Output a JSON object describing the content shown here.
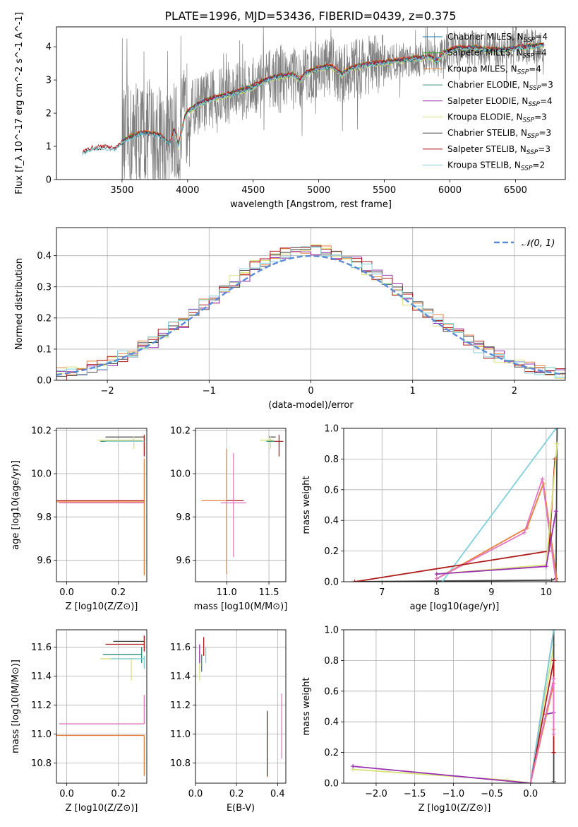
{
  "figure_title": "PLATE=1996, MJD=53436, FIBERID=0439, z=0.375",
  "colors": {
    "chabrier_miles": "#1f77b4",
    "salpeter_miles": "#2ca02c",
    "kroupa_miles": "#e6803a",
    "chabrier_elodie": "#2f8f77",
    "salpeter_elodie": "#9a32b0",
    "kroupa_elodie": "#d8e27a",
    "chabrier_stelib": "#444444",
    "salpeter_stelib": "#b01c1c",
    "kroupa_stelib": "#7fd0dc",
    "data": "#808080",
    "pink": "#e377c2",
    "gaussian": "#5b8bd6"
  },
  "chart_data": [
    {
      "id": "spectrum",
      "type": "line",
      "title": "PLATE=1996, MJD=53436, FIBERID=0439, z=0.375",
      "xlabel": "wavelength [Angstrom, rest frame]",
      "ylabel": "Flux [f_λ 10^-17 erg cm^-2 s^-1 A^-1]",
      "xlim": [
        3000,
        6880
      ],
      "ylim": [
        0,
        4.6
      ],
      "xticks": [
        3500,
        4000,
        4500,
        5000,
        5500,
        6000,
        6500
      ],
      "yticks": [
        0,
        1,
        2,
        3,
        4
      ],
      "grid": false,
      "legend": {
        "position": "top-right",
        "entries": [
          {
            "key": "chabrier_miles",
            "prefix": "Chabrier MILES, N",
            "suffix": "=4"
          },
          {
            "key": "salpeter_miles",
            "prefix": "Salpeter MILES, N",
            "suffix": "=4"
          },
          {
            "key": "kroupa_miles",
            "prefix": "Kroupa MILES, N",
            "suffix": "=4"
          },
          {
            "key": "chabrier_elodie",
            "prefix": "Chabrier ELODIE, N",
            "suffix": "=3"
          },
          {
            "key": "salpeter_elodie",
            "prefix": "Salpeter ELODIE, N",
            "suffix": "=4"
          },
          {
            "key": "kroupa_elodie",
            "prefix": "Kroupa ELODIE, N",
            "suffix": "=3"
          },
          {
            "key": "chabrier_stelib",
            "prefix": "Chabrier STELIB, N",
            "suffix": "=3"
          },
          {
            "key": "salpeter_stelib",
            "prefix": "Salpeter STELIB, N",
            "suffix": "=3"
          },
          {
            "key": "kroupa_stelib",
            "prefix": "Kroupa STELIB, N",
            "suffix": "=2"
          }
        ]
      },
      "data_ranges": {
        "data": [
          3500,
          6720
        ],
        "stelib": [
          3200,
          6720
        ],
        "miles": [
          3500,
          6720
        ],
        "elodie": [
          3900,
          6720
        ]
      },
      "continuum": [
        [
          3200,
          0.8
        ],
        [
          3260,
          0.92
        ],
        [
          3350,
          0.96
        ],
        [
          3450,
          0.92
        ],
        [
          3500,
          1.1
        ],
        [
          3550,
          1.25
        ],
        [
          3650,
          1.4
        ],
        [
          3750,
          1.35
        ],
        [
          3800,
          1.3
        ],
        [
          3860,
          1.05
        ],
        [
          3900,
          1.5
        ],
        [
          3930,
          1.0
        ],
        [
          3980,
          1.9
        ],
        [
          4000,
          2.05
        ],
        [
          4100,
          2.3
        ],
        [
          4200,
          2.45
        ],
        [
          4300,
          2.55
        ],
        [
          4400,
          2.65
        ],
        [
          4500,
          2.8
        ],
        [
          4600,
          3.0
        ],
        [
          4700,
          3.1
        ],
        [
          4800,
          3.15
        ],
        [
          4861,
          3.0
        ],
        [
          4900,
          3.2
        ],
        [
          5000,
          3.35
        ],
        [
          5100,
          3.4
        ],
        [
          5175,
          3.15
        ],
        [
          5250,
          3.35
        ],
        [
          5350,
          3.45
        ],
        [
          5450,
          3.5
        ],
        [
          5550,
          3.55
        ],
        [
          5650,
          3.6
        ],
        [
          5750,
          3.65
        ],
        [
          5850,
          3.7
        ],
        [
          5900,
          3.55
        ],
        [
          5950,
          3.8
        ],
        [
          6050,
          3.95
        ],
        [
          6200,
          3.95
        ],
        [
          6300,
          3.9
        ],
        [
          6400,
          3.9
        ],
        [
          6500,
          3.95
        ],
        [
          6600,
          4.0
        ],
        [
          6720,
          4.05
        ]
      ]
    },
    {
      "id": "residuals",
      "type": "line",
      "xlabel": "(data-model)/error",
      "ylabel": "Normed distribution",
      "xlim": [
        -2.5,
        2.5
      ],
      "ylim": [
        0,
        0.49
      ],
      "xticks": [
        -2,
        -1,
        0,
        1,
        2
      ],
      "yticks": [
        0.0,
        0.1,
        0.2,
        0.3,
        0.4
      ],
      "grid": true,
      "legend": {
        "position": "top-right",
        "entries": [
          {
            "key": "gaussian",
            "label": "𝒩(0, 1)"
          }
        ]
      },
      "bin_width": 0.1,
      "series": [
        {
          "key": "kroupa_miles",
          "offset": 0.0,
          "jitter": 0.02
        },
        {
          "key": "salpeter_elodie",
          "offset": 0.02,
          "jitter": 0.018
        },
        {
          "key": "kroupa_elodie",
          "offset": -0.03,
          "jitter": 0.02
        },
        {
          "key": "chabrier_stelib",
          "offset": 0.01,
          "jitter": 0.016
        },
        {
          "key": "salpeter_stelib",
          "offset": 0.0,
          "jitter": 0.022
        },
        {
          "key": "kroupa_stelib",
          "offset": -0.01,
          "jitter": 0.018
        }
      ]
    },
    {
      "id": "age_vs_Z",
      "type": "scatter",
      "xlabel": "Z [log10(Z/Z⊙)]",
      "ylabel": "age [log10(age/yr)]",
      "xlim": [
        -0.04,
        0.31
      ],
      "ylim": [
        9.5,
        10.21
      ],
      "xticks": [
        0.0,
        0.2
      ],
      "yticks": [
        9.6,
        9.8,
        10.0,
        10.2
      ],
      "grid": true,
      "points": [
        {
          "key": "kroupa_miles",
          "x": 0.3,
          "y": 9.87,
          "xerr": [
            0.35,
            0.0
          ],
          "yerr": [
            0.34,
            0.2
          ]
        },
        {
          "key": "salpeter_stelib",
          "x": 0.3,
          "y": 9.875,
          "xerr": [
            0.34,
            0.0
          ],
          "yerr": [
            0.0,
            0.0
          ]
        },
        {
          "key": "pink",
          "x": 0.3,
          "y": 9.865,
          "xerr": [
            0.33,
            0.0
          ],
          "yerr": [
            0.0,
            0.0
          ]
        },
        {
          "key": "salpeter_stelib",
          "x": 0.3,
          "y": 10.15,
          "xerr": [
            0.15,
            0.0
          ],
          "yerr": [
            0.07,
            0.03
          ]
        },
        {
          "key": "chabrier_stelib",
          "x": 0.3,
          "y": 10.17,
          "xerr": [
            0.15,
            0.0
          ],
          "yerr": [
            0.0,
            0.0
          ]
        },
        {
          "key": "kroupa_elodie",
          "x": 0.26,
          "y": 10.155,
          "xerr": [
            0.14,
            0.03
          ],
          "yerr": [
            0.04,
            0.02
          ]
        },
        {
          "key": "chabrier_elodie",
          "x": 0.27,
          "y": 10.15,
          "xerr": [
            0.14,
            0.03
          ],
          "yerr": [
            0.0,
            0.0
          ]
        },
        {
          "key": "kroupa_stelib",
          "x": 0.29,
          "y": 10.15,
          "xerr": [
            0.14,
            0.01
          ],
          "yerr": [
            0.0,
            0.0
          ]
        }
      ]
    },
    {
      "id": "age_vs_mass",
      "type": "scatter",
      "xlabel": "mass [log10(M/M⊙)]",
      "ylabel": "",
      "xlim": [
        10.63,
        11.7
      ],
      "ylim": [
        9.5,
        10.21
      ],
      "xticks": [
        11.0,
        11.5
      ],
      "yticks": [
        9.6,
        9.8,
        10.0,
        10.2
      ],
      "grid": true,
      "points": [
        {
          "key": "kroupa_miles",
          "x": 11.0,
          "y": 9.875,
          "xerr": [
            0.3,
            0.0
          ],
          "yerr": [
            0.34,
            0.24
          ]
        },
        {
          "key": "salpeter_stelib",
          "x": 11.0,
          "y": 9.875,
          "xerr": [
            0.0,
            0.2
          ],
          "yerr": [
            0.0,
            0.0
          ]
        },
        {
          "key": "pink",
          "x": 11.08,
          "y": 9.865,
          "xerr": [
            0.15,
            0.15
          ],
          "yerr": [
            0.25,
            0.23
          ]
        },
        {
          "key": "salpeter_stelib",
          "x": 11.62,
          "y": 10.15,
          "xerr": [
            0.1,
            0.05
          ],
          "yerr": [
            0.07,
            0.03
          ]
        },
        {
          "key": "chabrier_stelib",
          "x": 11.58,
          "y": 10.17,
          "xerr": [
            0.08,
            0.0
          ],
          "yerr": [
            0.0,
            0.0
          ]
        },
        {
          "key": "kroupa_elodie",
          "x": 11.52,
          "y": 10.155,
          "xerr": [
            0.13,
            0.03
          ],
          "yerr": [
            0.04,
            0.02
          ]
        },
        {
          "key": "chabrier_elodie",
          "x": 11.55,
          "y": 10.15,
          "xerr": [
            0.08,
            0.02
          ],
          "yerr": [
            0.0,
            0.0
          ]
        }
      ]
    },
    {
      "id": "weight_vs_age",
      "type": "line",
      "xlabel": "age [log10(age/yr)]",
      "ylabel": "mass weight",
      "xlim": [
        6.3,
        10.35
      ],
      "ylim": [
        0,
        1.0
      ],
      "xticks": [
        7,
        8,
        9,
        10
      ],
      "yticks": [
        0.0,
        0.2,
        0.4,
        0.6,
        0.8,
        1.0
      ],
      "grid": true,
      "series": [
        {
          "key": "chabrier_stelib",
          "x": [
            6.5,
            10.1,
            10.18,
            10.2
          ],
          "y": [
            0.0,
            0.01,
            0.02,
            1.0
          ]
        },
        {
          "key": "kroupa_stelib",
          "x": [
            8.1,
            10.18
          ],
          "y": [
            0.0,
            1.0
          ]
        },
        {
          "key": "kroupa_miles",
          "x": [
            8.0,
            9.65,
            9.95,
            10.2
          ],
          "y": [
            0.02,
            0.35,
            0.64,
            0.0
          ]
        },
        {
          "key": "pink",
          "x": [
            8.0,
            9.6,
            9.93,
            10.18
          ],
          "y": [
            0.02,
            0.32,
            0.67,
            0.0
          ]
        },
        {
          "key": "salpeter_stelib",
          "x": [
            6.5,
            10.05,
            10.16
          ],
          "y": [
            0.0,
            0.2,
            0.8
          ]
        },
        {
          "key": "kroupa_elodie",
          "x": [
            8.0,
            10.0,
            10.2
          ],
          "y": [
            0.05,
            0.11,
            0.9
          ]
        },
        {
          "key": "salpeter_elodie",
          "x": [
            8.0,
            10.0,
            10.18
          ],
          "y": [
            0.05,
            0.1,
            0.46
          ]
        }
      ]
    },
    {
      "id": "mass_vs_Z",
      "type": "scatter",
      "xlabel": "Z [log10(Z/Z⊙)]",
      "ylabel": "mass [log10(M/M⊙)]",
      "xlim": [
        -0.04,
        0.31
      ],
      "ylim": [
        10.66,
        11.72
      ],
      "xticks": [
        0.0,
        0.2
      ],
      "yticks": [
        10.8,
        11.0,
        11.2,
        11.4,
        11.6
      ],
      "grid": true,
      "points": [
        {
          "key": "kroupa_miles",
          "x": 0.3,
          "y": 10.99,
          "xerr": [
            0.34,
            0.0
          ],
          "yerr": [
            0.28,
            0.0
          ]
        },
        {
          "key": "pink",
          "x": 0.3,
          "y": 11.07,
          "xerr": [
            0.33,
            0.0
          ],
          "yerr": [
            0.0,
            0.2
          ]
        },
        {
          "key": "salpeter_stelib",
          "x": 0.3,
          "y": 11.62,
          "xerr": [
            0.15,
            0.0
          ],
          "yerr": [
            0.05,
            0.06
          ]
        },
        {
          "key": "chabrier_stelib",
          "x": 0.3,
          "y": 11.64,
          "xerr": [
            0.12,
            0.0
          ],
          "yerr": [
            0.0,
            0.0
          ]
        },
        {
          "key": "chabrier_elodie",
          "x": 0.29,
          "y": 11.55,
          "xerr": [
            0.15,
            0.0
          ],
          "yerr": [
            0.06,
            0.05
          ]
        },
        {
          "key": "kroupa_elodie",
          "x": 0.25,
          "y": 11.52,
          "xerr": [
            0.12,
            0.02
          ],
          "yerr": [
            0.15,
            0.0
          ]
        },
        {
          "key": "kroupa_stelib",
          "x": 0.3,
          "y": 11.52,
          "xerr": [
            0.13,
            0.0
          ],
          "yerr": [
            0.07,
            0.02
          ]
        }
      ]
    },
    {
      "id": "mass_vs_ebv",
      "type": "scatter",
      "xlabel": "E(B-V)",
      "ylabel": "",
      "xlim": [
        0.0,
        0.44
      ],
      "ylim": [
        10.66,
        11.72
      ],
      "xticks": [
        0.0,
        0.2,
        0.4
      ],
      "yticks": [
        10.8,
        11.0,
        11.2,
        11.4,
        11.6
      ],
      "grid": true,
      "points": [
        {
          "key": "kroupa_miles",
          "x": 0.35,
          "y": 10.95,
          "xerr": [
            0.0,
            0.0
          ],
          "yerr": [
            0.25,
            0.2
          ]
        },
        {
          "key": "chabrier_stelib",
          "x": 0.35,
          "y": 10.93,
          "xerr": [
            0.0,
            0.0
          ],
          "yerr": [
            0.22,
            0.23
          ]
        },
        {
          "key": "pink",
          "x": 0.42,
          "y": 11.05,
          "xerr": [
            0.0,
            0.0
          ],
          "yerr": [
            0.22,
            0.23
          ]
        },
        {
          "key": "salpeter_stelib",
          "x": 0.04,
          "y": 11.6,
          "xerr": [
            0.0,
            0.0
          ],
          "yerr": [
            0.06,
            0.07
          ]
        },
        {
          "key": "kroupa_elodie",
          "x": 0.02,
          "y": 11.45,
          "xerr": [
            0.0,
            0.0
          ],
          "yerr": [
            0.08,
            0.09
          ]
        },
        {
          "key": "salpeter_elodie",
          "x": 0.02,
          "y": 11.55,
          "xerr": [
            0.0,
            0.0
          ],
          "yerr": [
            0.06,
            0.07
          ]
        },
        {
          "key": "kroupa_stelib",
          "x": 0.05,
          "y": 11.54,
          "xerr": [
            0.0,
            0.0
          ],
          "yerr": [
            0.05,
            0.06
          ]
        },
        {
          "key": "chabrier_elodie",
          "x": 0.03,
          "y": 11.5,
          "xerr": [
            0.0,
            0.0
          ],
          "yerr": [
            0.07,
            0.05
          ]
        }
      ]
    },
    {
      "id": "weight_vs_Z",
      "type": "line",
      "xlabel": "Z [log10(Z/Z⊙)]",
      "ylabel": "mass weight",
      "xlim": [
        -2.42,
        0.45
      ],
      "ylim": [
        0,
        1.0
      ],
      "xticks": [
        -2.0,
        -1.5,
        -1.0,
        -0.5,
        0.0
      ],
      "yticks": [
        0.0,
        0.2,
        0.4,
        0.6,
        0.8,
        1.0
      ],
      "grid": true,
      "series": [
        {
          "key": "kroupa_elodie",
          "x": [
            -2.3,
            -0.3,
            0.0,
            0.3
          ],
          "y": [
            0.09,
            0.02,
            0.0,
            0.9
          ]
        },
        {
          "key": "salpeter_elodie",
          "x": [
            -2.3,
            0.0,
            0.2,
            0.3
          ],
          "y": [
            0.11,
            0.0,
            0.45,
            0.46
          ]
        },
        {
          "key": "chabrier_stelib",
          "x": [
            0.0,
            0.3,
            0.3
          ],
          "y": [
            0.0,
            1.0,
            0.01
          ]
        },
        {
          "key": "kroupa_stelib",
          "x": [
            0.0,
            0.3
          ],
          "y": [
            0.0,
            1.0
          ]
        },
        {
          "key": "salpeter_stelib",
          "x": [
            0.0,
            0.3,
            0.3
          ],
          "y": [
            0.0,
            0.8,
            0.2
          ]
        },
        {
          "key": "kroupa_miles",
          "x": [
            0.0,
            0.3,
            0.3
          ],
          "y": [
            0.0,
            0.65,
            0.35
          ]
        },
        {
          "key": "pink",
          "x": [
            0.0,
            0.3,
            0.3
          ],
          "y": [
            0.0,
            0.68,
            0.32
          ]
        }
      ]
    }
  ]
}
